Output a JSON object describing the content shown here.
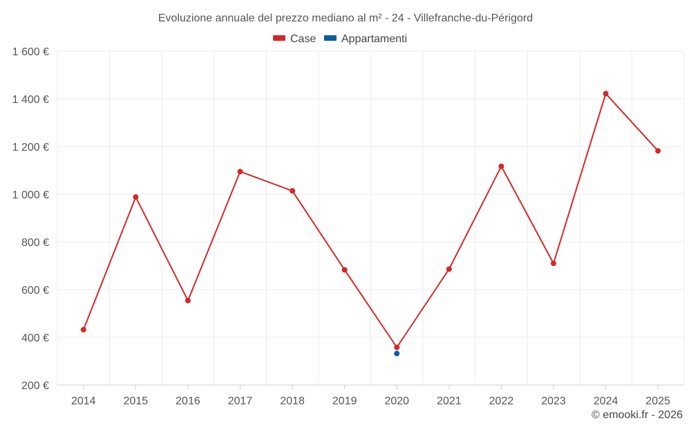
{
  "chart_data": {
    "type": "line",
    "title": "Evoluzione annuale del prezzo mediano al m² - 24 - Villefranche-du-Périgord",
    "categories": [
      "2014",
      "2015",
      "2016",
      "2017",
      "2018",
      "2019",
      "2020",
      "2021",
      "2022",
      "2023",
      "2024",
      "2025"
    ],
    "ylim": [
      200,
      1600
    ],
    "yticks": [
      200,
      400,
      600,
      800,
      1000,
      1200,
      1400,
      1600
    ],
    "ytick_labels": [
      "200 €",
      "400 €",
      "600 €",
      "800 €",
      "1 000 €",
      "1 200 €",
      "1 400 €",
      "1 600 €"
    ],
    "xlabel": "",
    "ylabel": "",
    "grid": true,
    "legend_position": "top-center",
    "series": [
      {
        "name": "Case",
        "color": "#d62728",
        "values": [
          432,
          988,
          554,
          1095,
          1014,
          683,
          358,
          686,
          1117,
          710,
          1422,
          1182
        ]
      },
      {
        "name": "Appartamenti",
        "color": "#0a5f9e",
        "values": [
          null,
          null,
          null,
          null,
          null,
          null,
          332,
          null,
          null,
          null,
          null,
          null
        ]
      }
    ]
  },
  "credit": "© emooki.fr - 2026"
}
